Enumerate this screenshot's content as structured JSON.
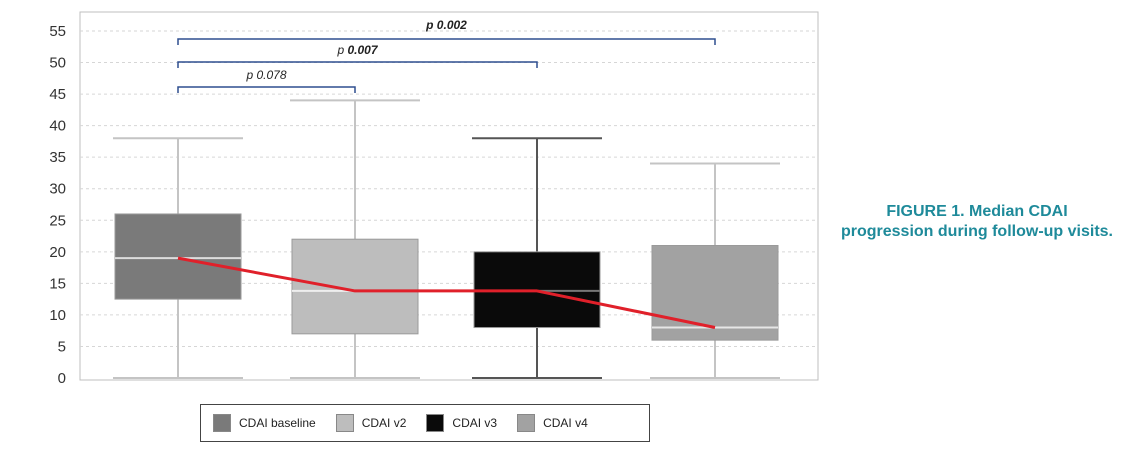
{
  "caption": "FIGURE 1. Median CDAI progression during follow-up visits.",
  "chart_data": {
    "type": "box",
    "ylim": [
      0,
      55
    ],
    "yticks": [
      0,
      5,
      10,
      15,
      20,
      25,
      30,
      35,
      40,
      45,
      50,
      55
    ],
    "grid": true,
    "series": [
      {
        "name": "CDAI  baseline",
        "min": 0,
        "q1": 12.5,
        "median": 19,
        "q3": 26,
        "max": 38,
        "color": "#7a7a7a",
        "median_color": "#dddddd"
      },
      {
        "name": "CDAI v2",
        "min": 0,
        "q1": 7,
        "median": 13.8,
        "q3": 22,
        "max": 44,
        "color": "#bdbdbd",
        "median_color": "#eeeeee"
      },
      {
        "name": "CDAI v3",
        "min": 0,
        "q1": 8,
        "median": 13.8,
        "q3": 20,
        "max": 38,
        "color": "#0a0a0a",
        "median_color": "#777777"
      },
      {
        "name": "CDAI v4",
        "min": 0,
        "q1": 6,
        "median": 8,
        "q3": 21,
        "max": 34,
        "color": "#a2a2a2",
        "median_color": "#e6e6e6"
      }
    ],
    "median_trend": {
      "values": [
        19,
        13.8,
        13.8,
        8
      ],
      "color": "#e0202a"
    },
    "comparisons": [
      {
        "from": 0,
        "to": 1,
        "label": "p 0.078",
        "bold": false
      },
      {
        "from": 0,
        "to": 2,
        "label_prefix": "p ",
        "label_value": "0.007",
        "bold": true
      },
      {
        "from": 0,
        "to": 3,
        "label": "p 0.002",
        "bold": true
      }
    ]
  }
}
